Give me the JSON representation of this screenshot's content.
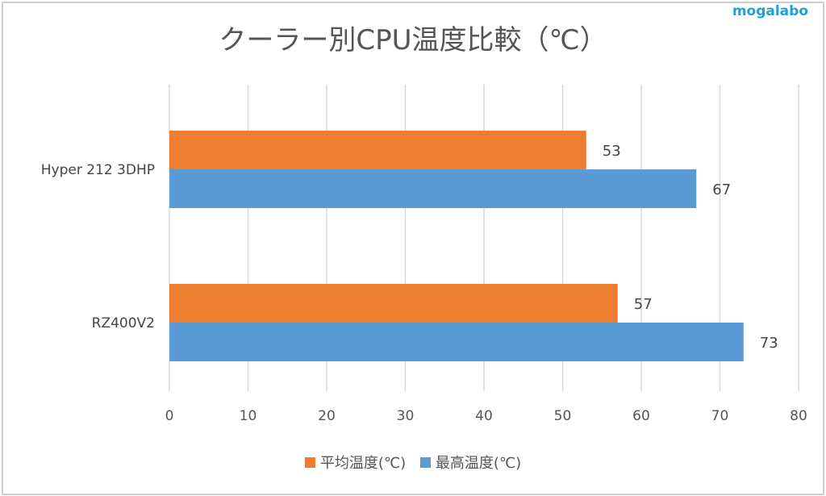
{
  "watermark": "mogalabo",
  "chart_data": {
    "type": "bar",
    "orientation": "horizontal",
    "title": "クーラー別CPU温度比較（℃）",
    "categories": [
      "Hyper 212 3DHP",
      "RZ400V2"
    ],
    "series": [
      {
        "name": "平均温度(℃)",
        "color": "#ed7d31",
        "values": [
          53,
          57
        ]
      },
      {
        "name": "最高温度(℃)",
        "color": "#5b9bd5",
        "values": [
          67,
          73
        ]
      }
    ],
    "xlim": [
      0,
      80
    ],
    "xticks": [
      "0",
      "10",
      "20",
      "30",
      "40",
      "50",
      "60",
      "70",
      "80"
    ],
    "grid": true,
    "data_labels": true,
    "legend": "bottom"
  }
}
